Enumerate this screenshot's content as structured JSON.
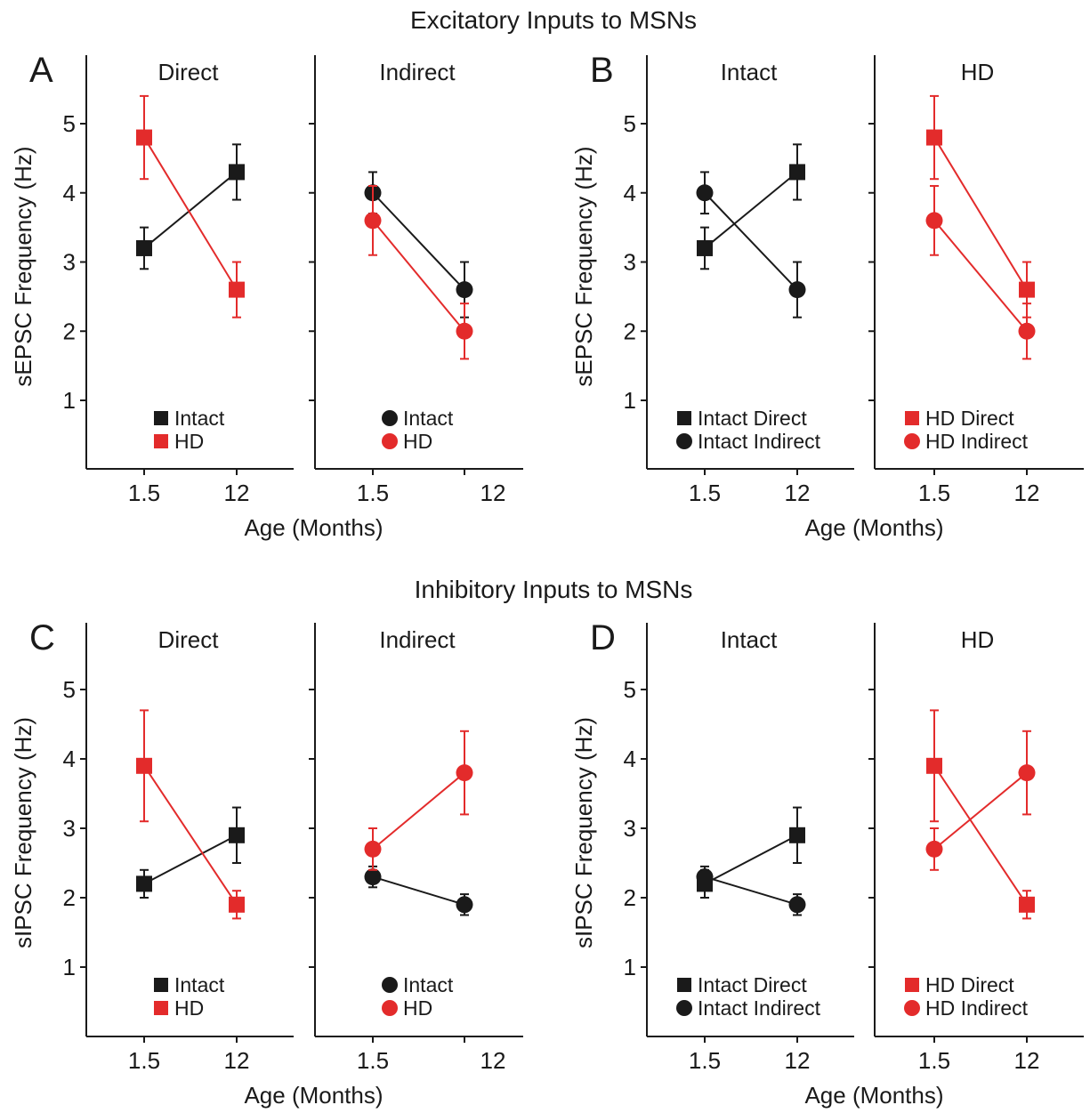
{
  "figure": {
    "row_titles": [
      "Excitatory Inputs to MSNs",
      "Inhibitory Inputs to MSNs"
    ],
    "colors": {
      "black": "#1a1a1a",
      "red": "#e32b2b"
    }
  },
  "chart_data": [
    {
      "type": "line",
      "panel_label": "A",
      "title": "Direct",
      "ylabel": "sEPSC Frequency (Hz)",
      "xlabel": "Age (Months)",
      "categories": [
        "1.5",
        "12"
      ],
      "yticks": [
        1,
        2,
        3,
        4,
        5
      ],
      "ylim": [
        0,
        5.8
      ],
      "series": [
        {
          "name": "Intact",
          "marker": "square",
          "color": "#1a1a1a",
          "values": [
            3.2,
            4.3
          ],
          "errors": [
            0.3,
            0.4
          ]
        },
        {
          "name": "HD",
          "marker": "square",
          "color": "#e32b2b",
          "values": [
            4.8,
            2.6
          ],
          "errors": [
            0.6,
            0.4
          ]
        }
      ]
    },
    {
      "type": "line",
      "panel_label": "",
      "title": "Indirect",
      "ylabel": "",
      "xlabel": "",
      "categories": [
        "1.5",
        "12"
      ],
      "yticks": [
        1,
        2,
        3,
        4,
        5
      ],
      "ylim": [
        0,
        5.8
      ],
      "series": [
        {
          "name": "Intact",
          "marker": "circle",
          "color": "#1a1a1a",
          "values": [
            4.0,
            2.6
          ],
          "errors": [
            0.3,
            0.4
          ]
        },
        {
          "name": "HD",
          "marker": "circle",
          "color": "#e32b2b",
          "values": [
            3.6,
            2.0
          ],
          "errors": [
            0.5,
            0.4
          ]
        }
      ]
    },
    {
      "type": "line",
      "panel_label": "B",
      "title": "Intact",
      "ylabel": "sEPSC Frequency (Hz)",
      "xlabel": "Age (Months)",
      "categories": [
        "1.5",
        "12"
      ],
      "yticks": [
        1,
        2,
        3,
        4,
        5
      ],
      "ylim": [
        0,
        5.8
      ],
      "series": [
        {
          "name": "Intact Direct",
          "marker": "square",
          "color": "#1a1a1a",
          "values": [
            3.2,
            4.3
          ],
          "errors": [
            0.3,
            0.4
          ]
        },
        {
          "name": "Intact Indirect",
          "marker": "circle",
          "color": "#1a1a1a",
          "values": [
            4.0,
            2.6
          ],
          "errors": [
            0.3,
            0.4
          ]
        }
      ]
    },
    {
      "type": "line",
      "panel_label": "",
      "title": "HD",
      "ylabel": "",
      "xlabel": "",
      "categories": [
        "1.5",
        "12"
      ],
      "yticks": [
        1,
        2,
        3,
        4,
        5
      ],
      "ylim": [
        0,
        5.8
      ],
      "series": [
        {
          "name": "HD Direct",
          "marker": "square",
          "color": "#e32b2b",
          "values": [
            4.8,
            2.6
          ],
          "errors": [
            0.6,
            0.4
          ]
        },
        {
          "name": "HD Indirect",
          "marker": "circle",
          "color": "#e32b2b",
          "values": [
            3.6,
            2.0
          ],
          "errors": [
            0.5,
            0.4
          ]
        }
      ]
    },
    {
      "type": "line",
      "panel_label": "C",
      "title": "Direct",
      "ylabel": "sIPSC Frequency (Hz)",
      "xlabel": "Age (Months)",
      "categories": [
        "1.5",
        "12"
      ],
      "yticks": [
        1,
        2,
        3,
        4,
        5
      ],
      "ylim": [
        0,
        5.8
      ],
      "series": [
        {
          "name": "Intact",
          "marker": "square",
          "color": "#1a1a1a",
          "values": [
            2.2,
            2.9
          ],
          "errors": [
            0.2,
            0.4
          ]
        },
        {
          "name": "HD",
          "marker": "square",
          "color": "#e32b2b",
          "values": [
            3.9,
            1.9
          ],
          "errors": [
            0.8,
            0.2
          ]
        }
      ]
    },
    {
      "type": "line",
      "panel_label": "",
      "title": "Indirect",
      "ylabel": "",
      "xlabel": "",
      "categories": [
        "1.5",
        "12"
      ],
      "yticks": [
        1,
        2,
        3,
        4,
        5
      ],
      "ylim": [
        0,
        5.8
      ],
      "series": [
        {
          "name": "Intact",
          "marker": "circle",
          "color": "#1a1a1a",
          "values": [
            2.3,
            1.9
          ],
          "errors": [
            0.15,
            0.15
          ]
        },
        {
          "name": "HD",
          "marker": "circle",
          "color": "#e32b2b",
          "values": [
            2.7,
            3.8
          ],
          "errors": [
            0.3,
            0.6
          ]
        }
      ]
    },
    {
      "type": "line",
      "panel_label": "D",
      "title": "Intact",
      "ylabel": "sIPSC Frequency (Hz)",
      "xlabel": "Age (Months)",
      "categories": [
        "1.5",
        "12"
      ],
      "yticks": [
        1,
        2,
        3,
        4,
        5
      ],
      "ylim": [
        0,
        5.8
      ],
      "series": [
        {
          "name": "Intact Direct",
          "marker": "square",
          "color": "#1a1a1a",
          "values": [
            2.2,
            2.9
          ],
          "errors": [
            0.2,
            0.4
          ]
        },
        {
          "name": "Intact Indirect",
          "marker": "circle",
          "color": "#1a1a1a",
          "values": [
            2.3,
            1.9
          ],
          "errors": [
            0.15,
            0.15
          ]
        }
      ]
    },
    {
      "type": "line",
      "panel_label": "",
      "title": "HD",
      "ylabel": "",
      "xlabel": "",
      "categories": [
        "1.5",
        "12"
      ],
      "yticks": [
        1,
        2,
        3,
        4,
        5
      ],
      "ylim": [
        0,
        5.8
      ],
      "series": [
        {
          "name": "HD Direct",
          "marker": "square",
          "color": "#e32b2b",
          "values": [
            3.9,
            1.9
          ],
          "errors": [
            0.8,
            0.2
          ]
        },
        {
          "name": "HD Indirect",
          "marker": "circle",
          "color": "#e32b2b",
          "values": [
            2.7,
            3.8
          ],
          "errors": [
            0.3,
            0.6
          ]
        }
      ]
    }
  ]
}
